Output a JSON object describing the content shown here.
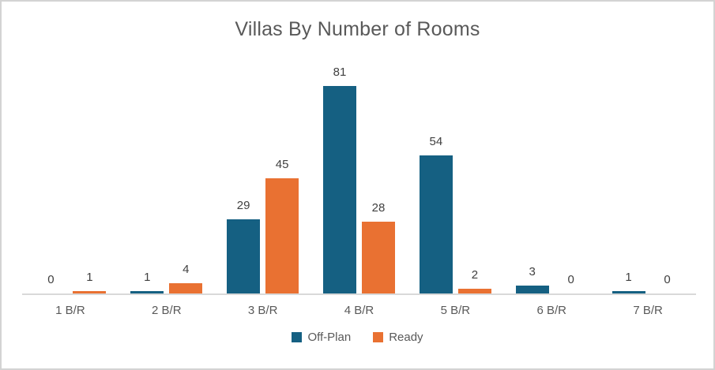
{
  "chart_data": {
    "type": "bar",
    "title": "Villas By Number of Rooms",
    "categories": [
      "1 B/R",
      "2 B/R",
      "3 B/R",
      "4 B/R",
      "5 B/R",
      "6 B/R",
      "7 B/R"
    ],
    "series": [
      {
        "name": "Off-Plan",
        "color": "#156082",
        "values": [
          0,
          1,
          29,
          81,
          54,
          3,
          1
        ]
      },
      {
        "name": "Ready",
        "color": "#E97132",
        "values": [
          1,
          4,
          45,
          28,
          2,
          0,
          0
        ]
      }
    ],
    "xlabel": "",
    "ylabel": "",
    "ylim": [
      0,
      90
    ],
    "y_axis_visible": false,
    "gridlines": false,
    "data_labels": true,
    "legend_position": "bottom"
  },
  "style": {
    "title_color": "#595959",
    "data_label_color": "#404040",
    "axis_label_color": "#595959",
    "axis_line_color": "#d9d9d9",
    "canvas_border_color": "#d3d3d3",
    "background_color": "#ffffff"
  }
}
